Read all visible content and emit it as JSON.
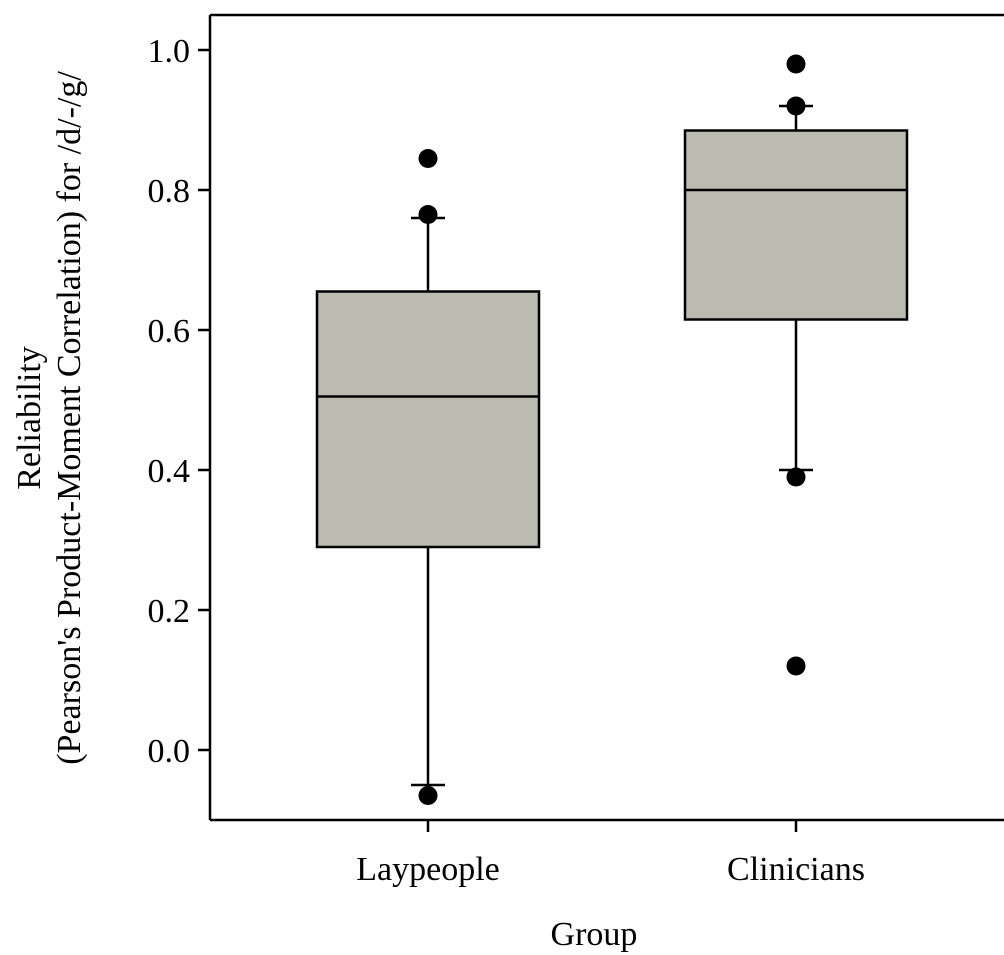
{
  "chart_data": {
    "type": "box",
    "title": "",
    "xlabel": "Group",
    "ylabel_line1": "Reliability",
    "ylabel_line2": "(Pearson's Product-Moment Correlation) for /d/-/g/",
    "ylim": [
      -0.1,
      1.05
    ],
    "yticks": [
      0.0,
      0.2,
      0.4,
      0.6,
      0.8,
      1.0
    ],
    "ytick_labels": [
      "0.0",
      "0.2",
      "0.4",
      "0.6",
      "0.8",
      "1.0"
    ],
    "categories": [
      "Laypeople",
      "Clinicians"
    ],
    "grid": false,
    "colors": {
      "box_fill": "#bbbbb1",
      "stroke": "#000000"
    },
    "boxes": [
      {
        "name": "Laypeople",
        "whisker_low": -0.05,
        "q1": 0.29,
        "median": 0.505,
        "q3": 0.655,
        "whisker_high": 0.76,
        "outliers": [
          -0.065,
          0.765,
          0.845
        ]
      },
      {
        "name": "Clinicians",
        "whisker_low": 0.4,
        "q1": 0.615,
        "median": 0.8,
        "q3": 0.885,
        "whisker_high": 0.92,
        "outliers": [
          0.12,
          0.39,
          0.92,
          0.98
        ]
      }
    ]
  }
}
